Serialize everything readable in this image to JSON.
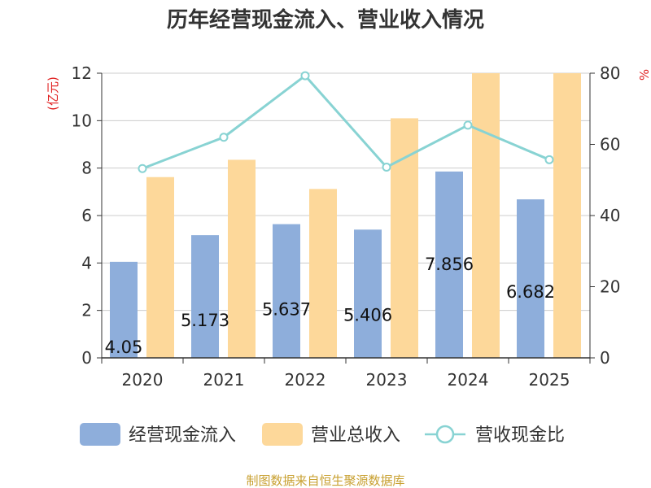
{
  "chart_data": {
    "type": "bar",
    "title": "历年经营现金流入、营业收入情况",
    "categories": [
      "2020",
      "2021",
      "2022",
      "2023",
      "2024",
      "2025"
    ],
    "y_left": {
      "label": "(亿元)",
      "range": [
        0,
        12
      ],
      "ticks": [
        "0",
        "2",
        "4",
        "6",
        "8",
        "10",
        "12"
      ]
    },
    "y_right": {
      "label": "%",
      "range": [
        0,
        80
      ],
      "ticks": [
        "0",
        "20",
        "40",
        "60",
        "80"
      ]
    },
    "series": [
      {
        "name": "经营现金流入",
        "type": "bar",
        "axis": "left",
        "color": "#8eaedb",
        "values": [
          4.05,
          5.173,
          5.637,
          5.406,
          7.856,
          6.682
        ],
        "labels": [
          "4.05",
          "5.173",
          "5.637",
          "5.406",
          "7.856",
          "6.682"
        ]
      },
      {
        "name": "营业总收入",
        "type": "bar",
        "axis": "left",
        "color": "#fdd89a",
        "values": [
          7.62,
          8.35,
          7.12,
          10.1,
          12.0,
          12.0
        ]
      },
      {
        "name": "营收现金比",
        "type": "line",
        "axis": "right",
        "color": "#88d3d3",
        "values": [
          53.2,
          62.0,
          79.3,
          53.6,
          65.4,
          55.7
        ]
      }
    ],
    "grid": true,
    "legend_position": "bottom"
  },
  "source": "制图数据来自恒生聚源数据库"
}
